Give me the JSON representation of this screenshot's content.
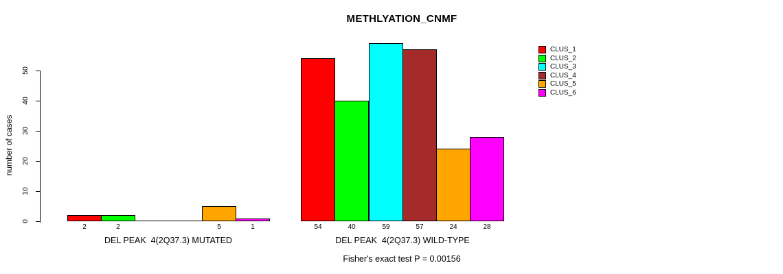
{
  "title": "METHLYATION_CNMF",
  "y_axis": {
    "label": "number of cases",
    "ticks": [
      0,
      10,
      20,
      30,
      40,
      50
    ]
  },
  "annotation": "Fisher's exact test P = 0.00156",
  "legend": {
    "items": [
      {
        "label": "CLUS_1",
        "color": "#FF0000"
      },
      {
        "label": "CLUS_2",
        "color": "#00FF00"
      },
      {
        "label": "CLUS_3",
        "color": "#00FFFF"
      },
      {
        "label": "CLUS_4",
        "color": "#A52A2A"
      },
      {
        "label": "CLUS_5",
        "color": "#FFA500"
      },
      {
        "label": "CLUS_6",
        "color": "#FF00FF"
      }
    ]
  },
  "chart_data": {
    "type": "bar",
    "title": "METHLYATION_CNMF",
    "ylabel": "number of cases",
    "ylim": [
      0,
      59
    ],
    "yticks": [
      0,
      10,
      20,
      30,
      40,
      50
    ],
    "grid": false,
    "legend_position": "right",
    "categories": [
      "DEL PEAK  4(2Q37.3) MUTATED",
      "DEL PEAK  4(2Q37.3) WILD-TYPE"
    ],
    "category_keys": [
      "mutated",
      "wild-type"
    ],
    "series": [
      {
        "name": "CLUS_1",
        "color": "#FF0000",
        "values": [
          2,
          54
        ]
      },
      {
        "name": "CLUS_2",
        "color": "#00FF00",
        "values": [
          2,
          40
        ]
      },
      {
        "name": "CLUS_3",
        "color": "#00FFFF",
        "values": [
          0,
          59
        ]
      },
      {
        "name": "CLUS_4",
        "color": "#A52A2A",
        "values": [
          0,
          57
        ]
      },
      {
        "name": "CLUS_5",
        "color": "#FFA500",
        "values": [
          5,
          24
        ]
      },
      {
        "name": "CLUS_6",
        "color": "#FF00FF",
        "values": [
          1,
          28
        ]
      }
    ],
    "bar_value_labels": {
      "show": true,
      "hide_zero": true
    },
    "annotation": "Fisher's exact test P = 0.00156"
  }
}
